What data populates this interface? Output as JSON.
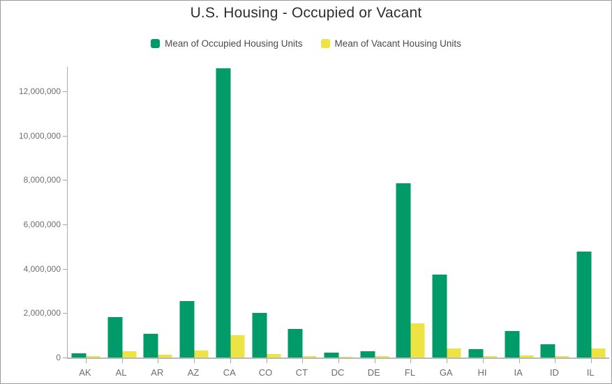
{
  "chart_data": {
    "type": "bar",
    "title": "U.S. Housing - Occupied or Vacant",
    "categories": [
      "AK",
      "AL",
      "AR",
      "AZ",
      "CA",
      "CO",
      "CT",
      "DC",
      "DE",
      "FL",
      "GA",
      "HI",
      "IA",
      "ID",
      "IL"
    ],
    "series": [
      {
        "name": "Mean of Occupied Housing Units",
        "color": "#009b69",
        "values": [
          175000,
          1820000,
          1060000,
          2540000,
          13050000,
          2020000,
          1300000,
          210000,
          280000,
          7860000,
          3740000,
          380000,
          1210000,
          600000,
          4790000
        ]
      },
      {
        "name": "Mean of Vacant Housing Units",
        "color": "#ede342",
        "values": [
          50000,
          290000,
          120000,
          310000,
          1020000,
          160000,
          70000,
          30000,
          55000,
          1540000,
          400000,
          55000,
          110000,
          50000,
          400000
        ]
      }
    ],
    "xlabel": "",
    "ylabel": "",
    "ylim": [
      0,
      13100000
    ],
    "ytick_step": 2000000,
    "ytick_labels": [
      "0",
      "2,000,000",
      "4,000,000",
      "6,000,000",
      "8,000,000",
      "10,000,000",
      "12,000,000"
    ],
    "grid": false,
    "legend_position": "top"
  }
}
